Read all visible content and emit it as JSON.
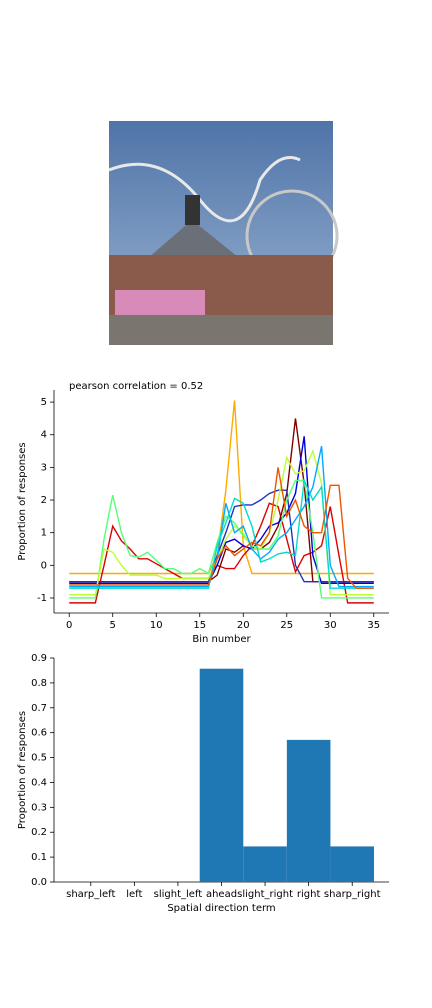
{
  "chart_data": [
    {
      "type": "line",
      "title": "pearson correlation = 0.52",
      "xlabel": "Bin number",
      "ylabel": "Proportion of responses",
      "x": [
        0,
        1,
        2,
        3,
        4,
        5,
        6,
        7,
        8,
        9,
        10,
        11,
        12,
        13,
        14,
        15,
        16,
        17,
        18,
        19,
        20,
        21,
        22,
        23,
        24,
        25,
        26,
        27,
        28,
        29,
        30,
        31,
        32,
        33,
        34,
        35
      ],
      "xlim": [
        -1.75,
        36.75
      ],
      "ylim": [
        -1.46,
        5.37
      ],
      "xticks": [
        0,
        5,
        10,
        15,
        20,
        25,
        30,
        35
      ],
      "yticks": [
        -1,
        0,
        1,
        2,
        3,
        4,
        5
      ],
      "series": [
        {
          "color": "#ffaa00",
          "values": [
            -0.25,
            -0.25,
            -0.25,
            -0.25,
            -0.25,
            -0.25,
            -0.25,
            -0.25,
            -0.25,
            -0.25,
            -0.25,
            -0.25,
            -0.25,
            -0.25,
            -0.25,
            -0.25,
            -0.25,
            0.3,
            2.3,
            5.05,
            0.6,
            -0.25,
            -0.25,
            -0.25,
            -0.25,
            -0.25,
            -0.25,
            -0.25,
            -0.25,
            -0.25,
            -0.25,
            -0.25,
            -0.25,
            -0.25,
            -0.25,
            -0.25
          ]
        },
        {
          "color": "#dd0000",
          "values": [
            -1.15,
            -1.15,
            -1.15,
            -1.15,
            0,
            1.2,
            0.75,
            0.5,
            0.2,
            0.2,
            0.05,
            -0.1,
            -0.25,
            -0.4,
            -0.4,
            -0.4,
            -0.4,
            0,
            -0.1,
            -0.1,
            0.3,
            0.6,
            1.2,
            1.9,
            1.8,
            0.8,
            -0.2,
            0.3,
            0.4,
            0.6,
            1.8,
            0.3,
            -1.15,
            -1.15,
            -1.15,
            -1.15
          ]
        },
        {
          "color": "#800000",
          "values": [
            -0.5,
            -0.5,
            -0.5,
            -0.5,
            -0.5,
            -0.5,
            -0.5,
            -0.5,
            -0.5,
            -0.5,
            -0.5,
            -0.5,
            -0.5,
            -0.5,
            -0.5,
            -0.5,
            -0.5,
            -0.3,
            0.5,
            0.4,
            0.6,
            0.5,
            0.5,
            0.7,
            1.2,
            2.2,
            4.5,
            2.5,
            -0.5,
            -0.5,
            -0.5,
            -0.5,
            -0.5,
            -0.5,
            -0.5,
            -0.5
          ]
        },
        {
          "color": "#0000dd",
          "values": [
            -0.55,
            -0.55,
            -0.55,
            -0.55,
            -0.55,
            -0.55,
            -0.55,
            -0.55,
            -0.55,
            -0.55,
            -0.55,
            -0.55,
            -0.55,
            -0.55,
            -0.55,
            -0.55,
            -0.55,
            0,
            0.7,
            0.8,
            0.6,
            0.5,
            0.8,
            1.2,
            1.3,
            1.6,
            2.2,
            3.95,
            0.3,
            -0.55,
            -0.55,
            -0.55,
            -0.55,
            -0.55,
            -0.55,
            -0.55
          ]
        },
        {
          "color": "#2233bb",
          "values": [
            -0.5,
            -0.5,
            -0.5,
            -0.5,
            -0.5,
            -0.5,
            -0.5,
            -0.5,
            -0.5,
            -0.5,
            -0.5,
            -0.5,
            -0.5,
            -0.5,
            -0.5,
            -0.5,
            -0.5,
            0.3,
            1.0,
            1.8,
            1.85,
            1.85,
            2.0,
            2.2,
            2.3,
            2.3,
            0,
            -0.5,
            -0.5,
            -0.5,
            -0.5,
            -0.5,
            -0.5,
            -0.5,
            -0.5,
            -0.5
          ]
        },
        {
          "color": "#55ff77",
          "values": [
            -1.0,
            -1.0,
            -1.0,
            -1.0,
            0.8,
            2.15,
            1.0,
            0.3,
            0.25,
            0.4,
            0.15,
            -0.1,
            -0.1,
            -0.25,
            -0.25,
            -0.1,
            -0.25,
            0.7,
            1.5,
            1.3,
            0.9,
            0.6,
            0.5,
            0.5,
            0.9,
            2.0,
            2.6,
            2.6,
            1.0,
            -1.0,
            -1.0,
            -1.0,
            -1.0,
            -1.0,
            -1.0,
            -1.0
          ]
        },
        {
          "color": "#bbff33",
          "values": [
            -0.9,
            -0.9,
            -0.9,
            -0.9,
            0.5,
            0.4,
            0,
            -0.3,
            -0.3,
            -0.3,
            -0.3,
            -0.4,
            -0.4,
            -0.4,
            -0.4,
            -0.4,
            -0.4,
            0.2,
            0.8,
            1.2,
            1.0,
            0.5,
            0.5,
            1.0,
            2.0,
            3.3,
            2.8,
            2.9,
            3.5,
            2.5,
            -0.9,
            -0.9,
            -0.9,
            -0.9,
            -0.9,
            -0.9
          ]
        },
        {
          "color": "#00aaff",
          "values": [
            -0.65,
            -0.65,
            -0.65,
            -0.65,
            -0.65,
            -0.65,
            -0.65,
            -0.65,
            -0.65,
            -0.65,
            -0.65,
            -0.65,
            -0.65,
            -0.65,
            -0.65,
            -0.65,
            -0.65,
            0.2,
            1.9,
            1.0,
            1.2,
            0.5,
            0.2,
            0.4,
            0.8,
            1.0,
            1.4,
            1.8,
            2.4,
            3.65,
            0,
            -0.65,
            -0.65,
            -0.65,
            -0.65,
            -0.65
          ]
        },
        {
          "color": "#00ddcc",
          "values": [
            -0.7,
            -0.7,
            -0.7,
            -0.7,
            -0.7,
            -0.7,
            -0.7,
            -0.7,
            -0.7,
            -0.7,
            -0.7,
            -0.7,
            -0.7,
            -0.7,
            -0.7,
            -0.7,
            -0.7,
            0.6,
            1.3,
            2.05,
            1.9,
            1.2,
            0.1,
            0.2,
            0.35,
            0.4,
            0.3,
            2.6,
            2.0,
            2.4,
            -0.7,
            -0.7,
            -0.7,
            -0.7,
            -0.7,
            -0.7
          ]
        },
        {
          "color": "#ee5500",
          "values": [
            -0.6,
            -0.6,
            -0.6,
            -0.6,
            -0.6,
            -0.6,
            -0.6,
            -0.6,
            -0.6,
            -0.6,
            -0.6,
            -0.6,
            -0.6,
            -0.6,
            -0.6,
            -0.6,
            -0.6,
            0.2,
            0.6,
            0.3,
            0.5,
            0.7,
            0.6,
            1.0,
            3.0,
            1.5,
            2.0,
            1.2,
            1.0,
            1.0,
            2.45,
            2.45,
            -0.4,
            -0.7,
            -0.7,
            -0.7
          ]
        }
      ]
    },
    {
      "type": "bar",
      "xlabel": "Spatial direction term",
      "ylabel": "Proportion of responses",
      "categories": [
        "sharp_left",
        "left",
        "slight_left",
        "ahead",
        "slight_right",
        "right",
        "sharp_right"
      ],
      "values": [
        0,
        0,
        0,
        0.857,
        0.143,
        0.571,
        0.143
      ],
      "color": "#1f77b4",
      "ylim": [
        0,
        0.9
      ],
      "yticks": [
        {
          "value": 0,
          "label": "0.0"
        },
        0.1,
        0.2,
        0.3,
        0.4,
        0.5,
        0.6,
        0.7,
        0.8,
        0.9
      ]
    }
  ]
}
